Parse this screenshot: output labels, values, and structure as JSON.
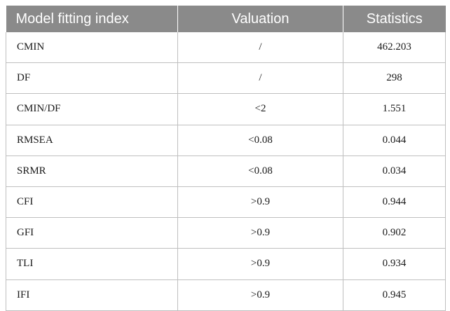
{
  "table": {
    "headers": [
      "Model fitting index",
      "Valuation",
      "Statistics"
    ],
    "rows": [
      [
        "CMIN",
        "/",
        "462.203"
      ],
      [
        "DF",
        "/",
        "298"
      ],
      [
        "CMIN/DF",
        "<2",
        "1.551"
      ],
      [
        "RMSEA",
        "<0.08",
        "0.044"
      ],
      [
        "SRMR",
        "<0.08",
        "0.034"
      ],
      [
        "CFI",
        ">0.9",
        "0.944"
      ],
      [
        "GFI",
        ">0.9",
        "0.902"
      ],
      [
        "TLI",
        ">0.9",
        "0.934"
      ],
      [
        "IFI",
        ">0.9",
        "0.945"
      ]
    ]
  },
  "colors": {
    "header_bg": "#8a8a8a",
    "header_text": "#ffffff",
    "grid": "#bfbfbf"
  }
}
